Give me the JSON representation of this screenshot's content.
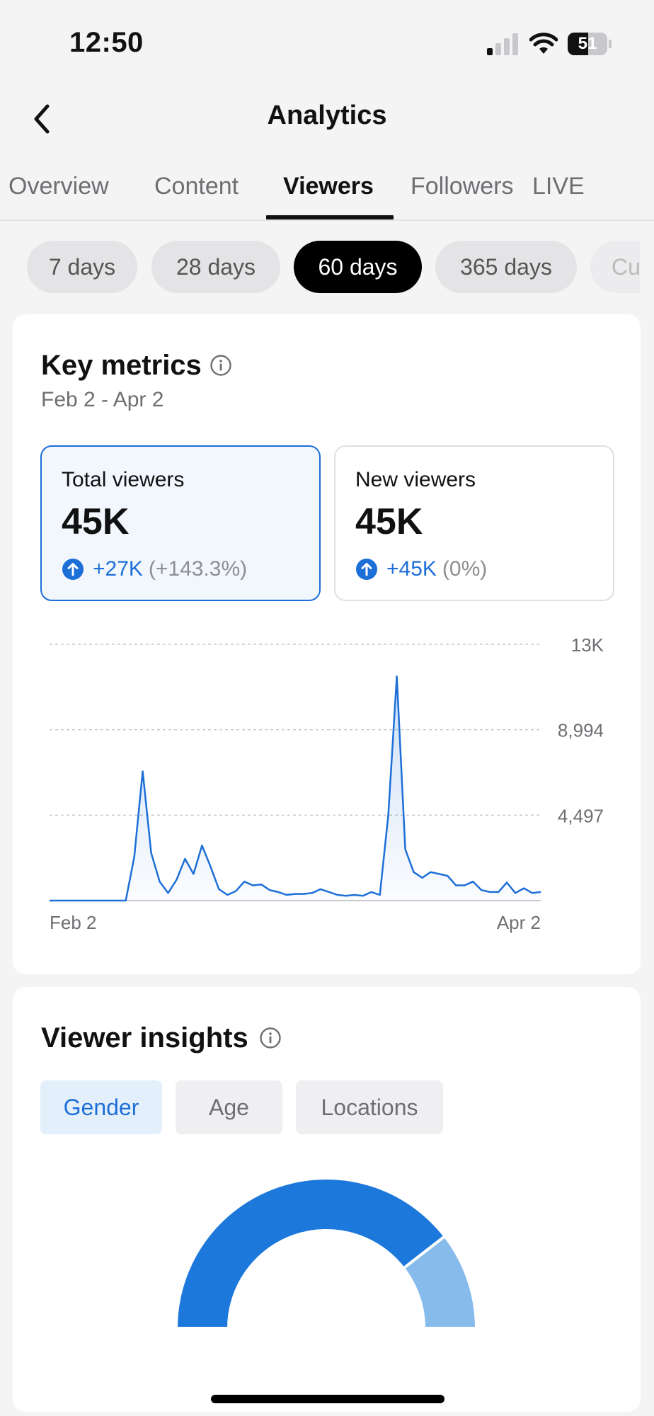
{
  "status_bar": {
    "time": "12:50",
    "battery": "51",
    "battery_level_percent": 51,
    "signal_bars_active": 1,
    "signal_bars_total": 4,
    "icons": [
      "cellular-signal-icon",
      "wifi-icon",
      "battery-icon"
    ]
  },
  "header": {
    "title": "Analytics",
    "back_icon": "chevron-left-icon"
  },
  "tabs": [
    {
      "label": "Overview",
      "active": false
    },
    {
      "label": "Content",
      "active": false
    },
    {
      "label": "Viewers",
      "active": true
    },
    {
      "label": "Followers",
      "active": false
    },
    {
      "label": "LIVE",
      "active": false
    }
  ],
  "periods": [
    {
      "label": "7 days",
      "active": false
    },
    {
      "label": "28 days",
      "active": false
    },
    {
      "label": "60 days",
      "active": true
    },
    {
      "label": "365 days",
      "active": false
    },
    {
      "label": "Cu",
      "active": false
    }
  ],
  "key_metrics": {
    "title": "Key metrics",
    "info_icon": "info-icon",
    "date_range": "Feb 2 - Apr 2",
    "total_viewers": {
      "label": "Total viewers",
      "value": "45K",
      "change": "+27K",
      "change_pct": "(+143.3%)",
      "selected": true
    },
    "new_viewers": {
      "label": "New viewers",
      "value": "45K",
      "change": "+45K",
      "change_pct": "(0%)",
      "selected": false
    }
  },
  "chart_data": {
    "type": "area",
    "x_start_label": "Feb 2",
    "x_end_label": "Apr 2",
    "y_tick_labels": [
      "13K",
      "8,994",
      "4,497"
    ],
    "y_ticks": [
      13491,
      8994,
      4497
    ],
    "ylim": [
      0,
      13491
    ],
    "grid": true,
    "series": [
      {
        "color": "#1d6fd8",
        "values": [
          0,
          0,
          0,
          0,
          0,
          0,
          0,
          0,
          0,
          0,
          2300,
          6800,
          2500,
          1000,
          400,
          1100,
          2200,
          1400,
          2900,
          1800,
          600,
          300,
          500,
          1000,
          800,
          850,
          550,
          450,
          300,
          350,
          350,
          400,
          600,
          450,
          300,
          250,
          300,
          250,
          450,
          300,
          4500,
          11800,
          2700,
          1500,
          1200,
          1500,
          1400,
          1300,
          800,
          800,
          1000,
          550,
          450,
          450,
          950,
          400,
          650,
          400,
          450
        ]
      }
    ]
  },
  "viewer_insights": {
    "title": "Viewer insights",
    "info_icon": "info-icon",
    "chips": [
      {
        "label": "Gender",
        "active": true
      },
      {
        "label": "Age",
        "active": false
      },
      {
        "label": "Locations",
        "active": false
      }
    ],
    "gender_chart": {
      "type": "pie",
      "segments": [
        {
          "value": 79,
          "color": "#1d78db"
        },
        {
          "value": 21,
          "color": "#86bbec"
        }
      ]
    }
  },
  "colors": {
    "accent": "#1d6fd8",
    "background": "#f4f4f5",
    "card": "#ffffff"
  }
}
